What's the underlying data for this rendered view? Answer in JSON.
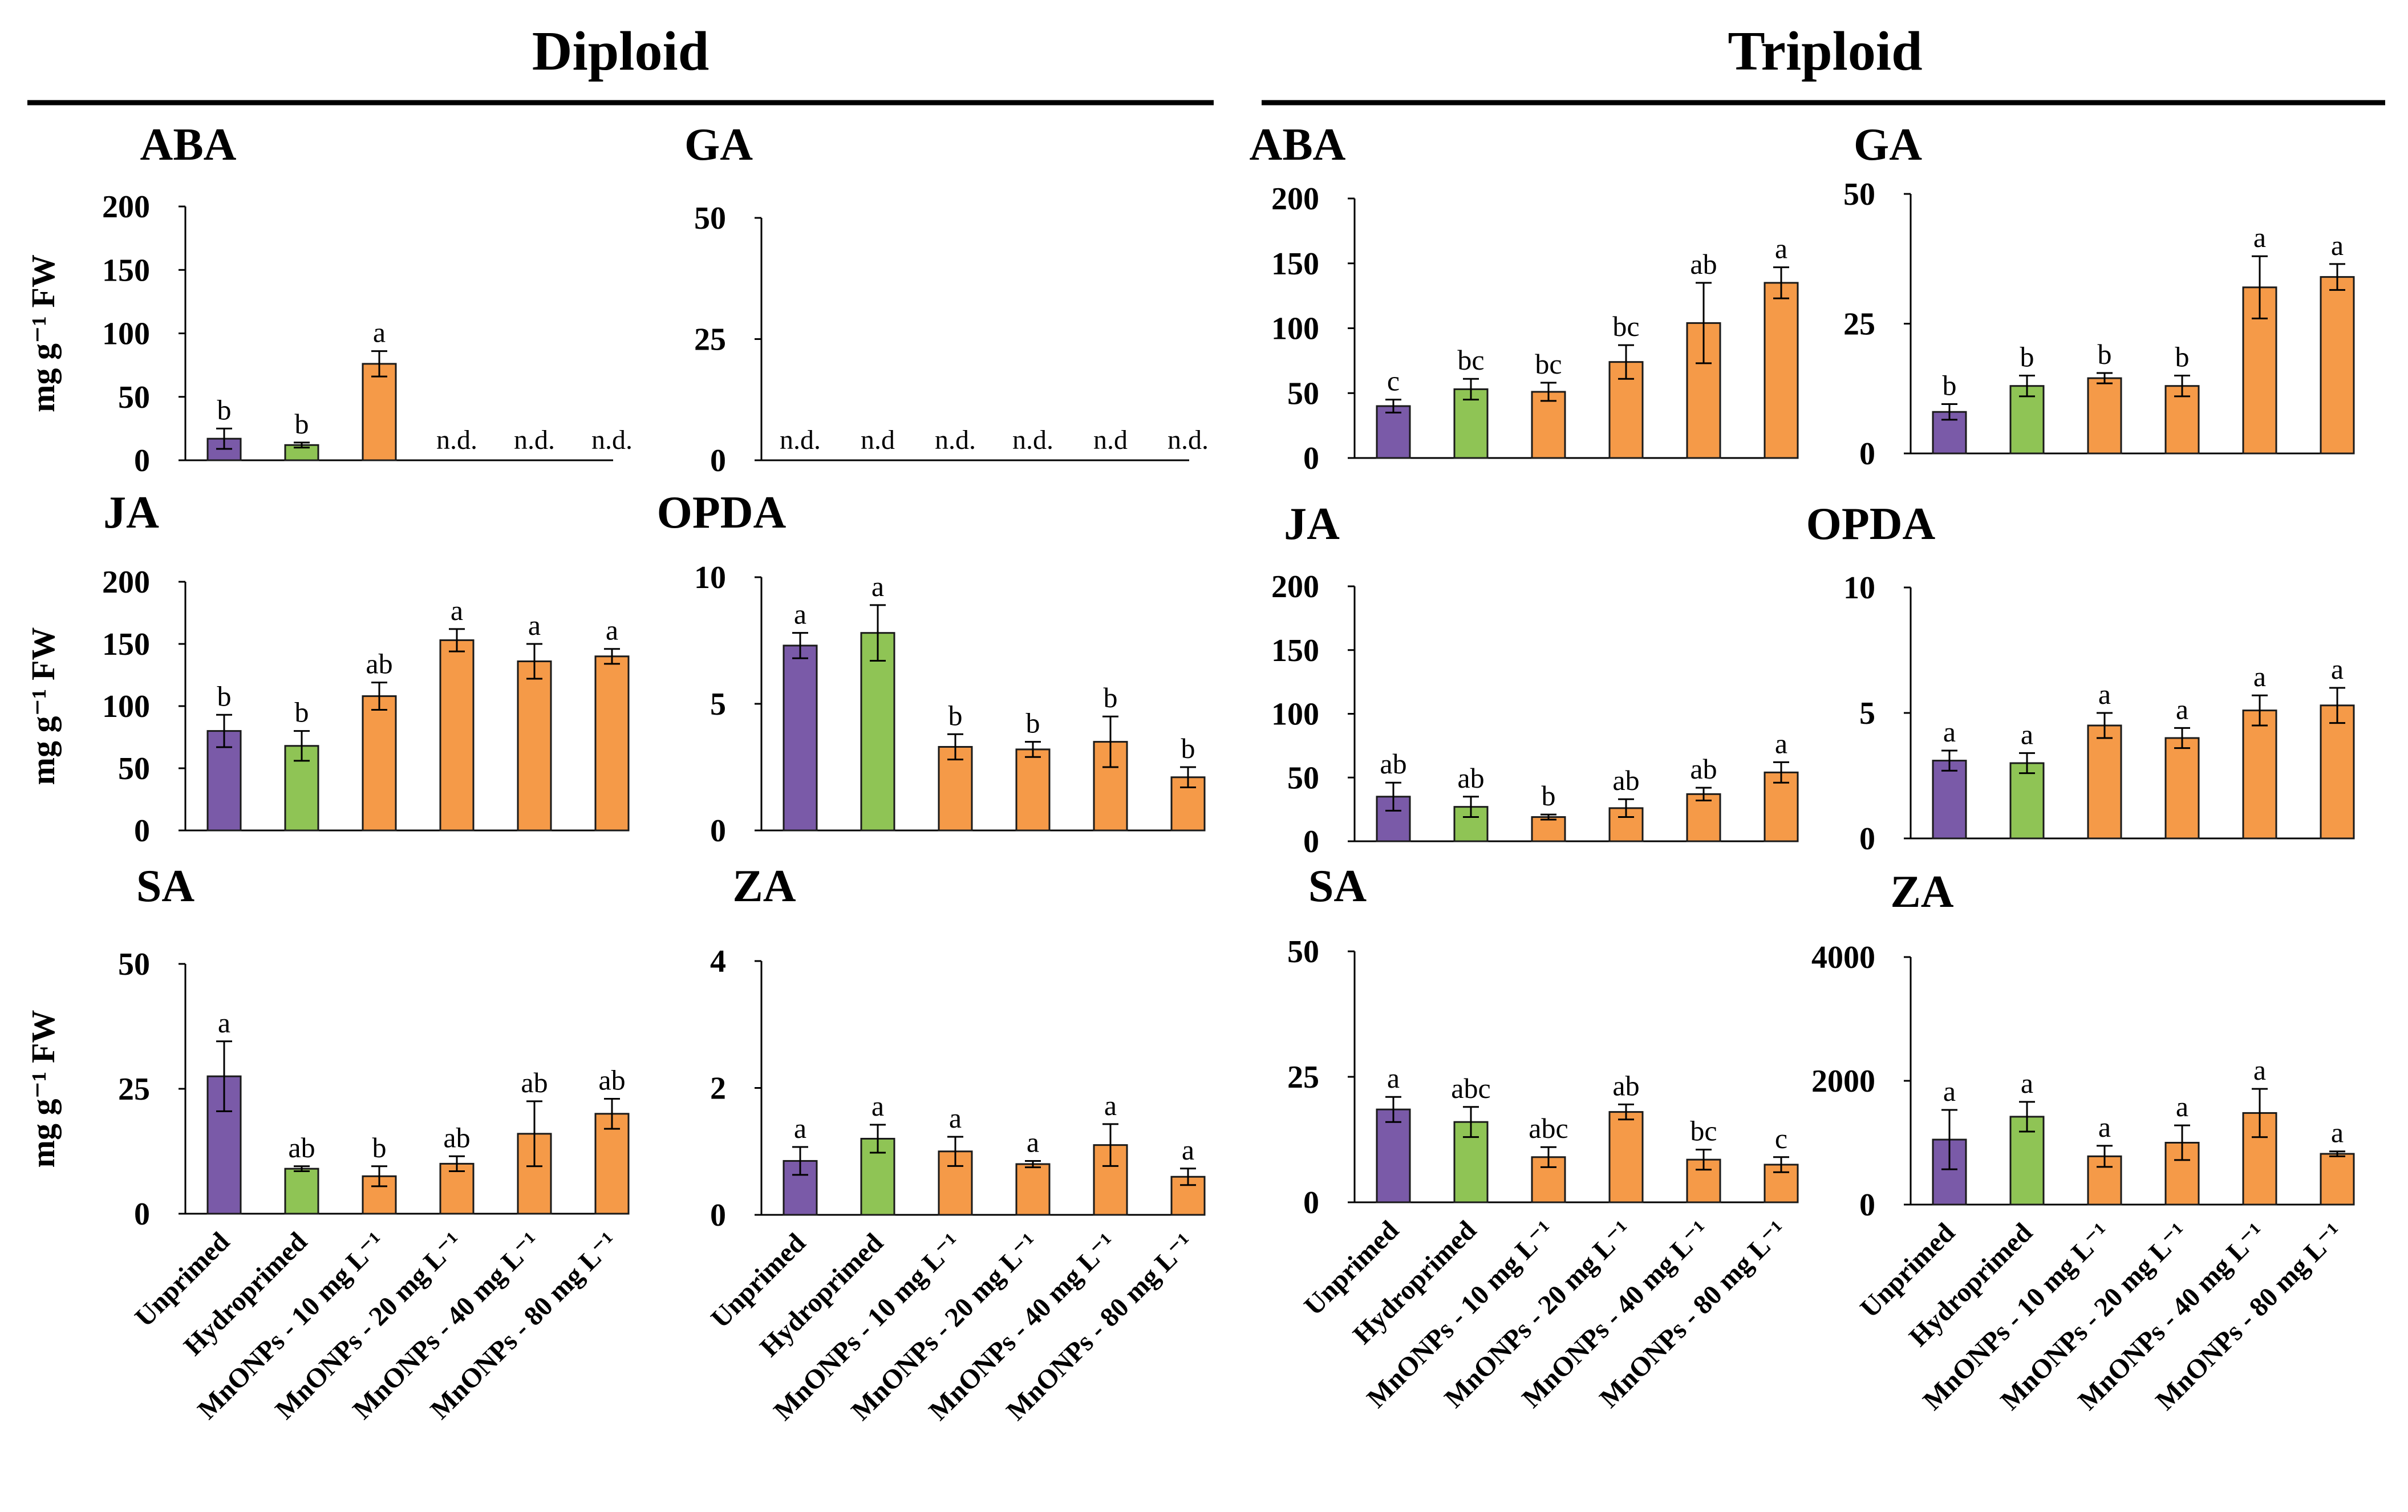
{
  "group_titles": [
    "Diploid",
    "Triploid"
  ],
  "colors": {
    "Unprimed": "#7a5aa8",
    "Hydroprimed": "#8fc455",
    "MnONPs": "#f59a48",
    "outline": "#1a1a1a"
  },
  "chart_data": [
    {
      "type": "bar",
      "group": "Diploid",
      "title": "ABA",
      "ylabel": "mg g⁻¹ FW",
      "ylim": [
        0,
        200
      ],
      "yticks": [
        0,
        50,
        100,
        150,
        200
      ],
      "categories": [
        "Unprimed",
        "Hydroprimed",
        "MnONPs - 10 mg L⁻¹",
        "MnONPs - 20 mg L⁻¹",
        "MnONPs - 40 mg L⁻¹",
        "MnONPs - 80 mg L⁻¹"
      ],
      "values": [
        17,
        12,
        76,
        null,
        null,
        null
      ],
      "errors": [
        8,
        2,
        10,
        null,
        null,
        null
      ],
      "labels": [
        "b",
        "b",
        "a",
        "n.d.",
        "n.d.",
        "n.d."
      ]
    },
    {
      "type": "bar",
      "group": "Diploid",
      "title": "GA",
      "ylabel": "",
      "ylim": [
        0,
        50
      ],
      "yticks": [
        0,
        25,
        50
      ],
      "categories": [
        "Unprimed",
        "Hydroprimed",
        "MnONPs - 10 mg L⁻¹",
        "MnONPs - 20 mg L⁻¹",
        "MnONPs - 40 mg L⁻¹",
        "MnONPs - 80 mg L⁻¹"
      ],
      "values": [
        null,
        null,
        null,
        null,
        null,
        null
      ],
      "errors": [
        null,
        null,
        null,
        null,
        null,
        null
      ],
      "labels": [
        "n.d.",
        "n.d",
        "n.d.",
        "n.d.",
        "n.d",
        "n.d."
      ]
    },
    {
      "type": "bar",
      "group": "Triploid",
      "title": "ABA",
      "ylabel": "",
      "ylim": [
        0,
        200
      ],
      "yticks": [
        0,
        50,
        100,
        150,
        200
      ],
      "categories": [
        "Unprimed",
        "Hydroprimed",
        "MnONPs - 10 mg L⁻¹",
        "MnONPs - 20 mg L⁻¹",
        "MnONPs - 40 mg L⁻¹",
        "MnONPs - 80 mg L⁻¹"
      ],
      "values": [
        40,
        53,
        51,
        74,
        104,
        135
      ],
      "errors": [
        5,
        8,
        7,
        13,
        31,
        12
      ],
      "labels": [
        "c",
        "bc",
        "bc",
        "bc",
        "ab",
        "a"
      ]
    },
    {
      "type": "bar",
      "group": "Triploid",
      "title": "GA",
      "ylabel": "",
      "ylim": [
        0,
        50
      ],
      "yticks": [
        0,
        25,
        50
      ],
      "categories": [
        "Unprimed",
        "Hydroprimed",
        "MnONPs - 10 mg L⁻¹",
        "MnONPs - 20 mg L⁻¹",
        "MnONPs - 40 mg L⁻¹",
        "MnONPs - 80 mg L⁻¹"
      ],
      "values": [
        8,
        13,
        14.5,
        13,
        32,
        34
      ],
      "errors": [
        1.5,
        2,
        1,
        2,
        6,
        2.5
      ],
      "labels": [
        "b",
        "b",
        "b",
        "b",
        "a",
        "a"
      ]
    },
    {
      "type": "bar",
      "group": "Diploid",
      "title": "JA",
      "ylabel": "mg g⁻¹ FW",
      "ylim": [
        0,
        200
      ],
      "yticks": [
        0,
        50,
        100,
        150,
        200
      ],
      "categories": [
        "Unprimed",
        "Hydroprimed",
        "MnONPs - 10 mg L⁻¹",
        "MnONPs - 20 mg L⁻¹",
        "MnONPs - 40 mg L⁻¹",
        "MnONPs - 80 mg L⁻¹"
      ],
      "values": [
        80,
        68,
        108,
        153,
        136,
        140
      ],
      "errors": [
        13,
        12,
        11,
        9,
        14,
        6
      ],
      "labels": [
        "b",
        "b",
        "ab",
        "a",
        "a",
        "a"
      ]
    },
    {
      "type": "bar",
      "group": "Diploid",
      "title": "OPDA",
      "ylabel": "",
      "ylim": [
        0,
        10
      ],
      "yticks": [
        0,
        5,
        10
      ],
      "categories": [
        "Unprimed",
        "Hydroprimed",
        "MnONPs - 10 mg L⁻¹",
        "MnONPs - 20 mg L⁻¹",
        "MnONPs - 40 mg L⁻¹",
        "MnONPs - 80 mg L⁻¹"
      ],
      "values": [
        7.3,
        7.8,
        3.3,
        3.2,
        3.5,
        2.1
      ],
      "errors": [
        0.5,
        1.1,
        0.5,
        0.3,
        1.0,
        0.4
      ],
      "labels": [
        "a",
        "a",
        "b",
        "b",
        "b",
        "b"
      ]
    },
    {
      "type": "bar",
      "group": "Triploid",
      "title": "JA",
      "ylabel": "",
      "ylim": [
        0,
        200
      ],
      "yticks": [
        0,
        50,
        100,
        150,
        200
      ],
      "categories": [
        "Unprimed",
        "Hydroprimed",
        "MnONPs - 10 mg L⁻¹",
        "MnONPs - 20 mg L⁻¹",
        "MnONPs - 40 mg L⁻¹",
        "MnONPs - 80 mg L⁻¹"
      ],
      "values": [
        35,
        27,
        19,
        26,
        37,
        54
      ],
      "errors": [
        11,
        8,
        2,
        7,
        5,
        8
      ],
      "labels": [
        "ab",
        "ab",
        "b",
        "ab",
        "ab",
        "a"
      ]
    },
    {
      "type": "bar",
      "group": "Triploid",
      "title": "OPDA",
      "ylabel": "",
      "ylim": [
        0,
        10
      ],
      "yticks": [
        0,
        5,
        10
      ],
      "categories": [
        "Unprimed",
        "Hydroprimed",
        "MnONPs - 10 mg L⁻¹",
        "MnONPs - 20 mg L⁻¹",
        "MnONPs - 40 mg L⁻¹",
        "MnONPs - 80 mg L⁻¹"
      ],
      "values": [
        3.1,
        3.0,
        4.5,
        4.0,
        5.1,
        5.3
      ],
      "errors": [
        0.4,
        0.4,
        0.5,
        0.4,
        0.6,
        0.7
      ],
      "labels": [
        "a",
        "a",
        "a",
        "a",
        "a",
        "a"
      ]
    },
    {
      "type": "bar",
      "group": "Diploid",
      "title": "SA",
      "ylabel": "mg g⁻¹ FW",
      "ylim": [
        0,
        50
      ],
      "yticks": [
        0,
        25,
        50
      ],
      "categories": [
        "Unprimed",
        "Hydroprimed",
        "MnONPs - 10 mg L⁻¹",
        "MnONPs - 20 mg L⁻¹",
        "MnONPs - 40 mg L⁻¹",
        "MnONPs - 80 mg L⁻¹"
      ],
      "values": [
        27.5,
        9,
        7.5,
        10,
        16,
        20
      ],
      "errors": [
        7,
        0.5,
        2,
        1.5,
        6.5,
        3
      ],
      "labels": [
        "a",
        "ab",
        "b",
        "ab",
        "ab",
        "ab"
      ]
    },
    {
      "type": "bar",
      "group": "Diploid",
      "title": "ZA",
      "ylabel": "",
      "ylim": [
        0,
        4
      ],
      "yticks": [
        0,
        2,
        4
      ],
      "categories": [
        "Unprimed",
        "Hydroprimed",
        "MnONPs - 10 mg L⁻¹",
        "MnONPs - 20 mg L⁻¹",
        "MnONPs - 40 mg L⁻¹",
        "MnONPs - 80 mg L⁻¹"
      ],
      "values": [
        0.85,
        1.2,
        1.0,
        0.8,
        1.1,
        0.6
      ],
      "errors": [
        0.22,
        0.22,
        0.23,
        0.05,
        0.33,
        0.13
      ],
      "labels": [
        "a",
        "a",
        "a",
        "a",
        "a",
        "a"
      ]
    },
    {
      "type": "bar",
      "group": "Triploid",
      "title": "SA",
      "ylabel": "",
      "ylim": [
        0,
        50
      ],
      "yticks": [
        0,
        25,
        50
      ],
      "categories": [
        "Unprimed",
        "Hydroprimed",
        "MnONPs - 10 mg L⁻¹",
        "MnONPs - 20 mg L⁻¹",
        "MnONPs - 40 mg L⁻¹",
        "MnONPs - 80 mg L⁻¹"
      ],
      "values": [
        18.5,
        16,
        9,
        18,
        8.5,
        7.5
      ],
      "errors": [
        2.5,
        3,
        2,
        1.5,
        2,
        1.5
      ],
      "labels": [
        "a",
        "abc",
        "abc",
        "ab",
        "bc",
        "c"
      ]
    },
    {
      "type": "bar",
      "group": "Triploid",
      "title": "ZA",
      "ylabel": "",
      "ylim": [
        0,
        4000
      ],
      "yticks": [
        0,
        2000,
        4000
      ],
      "categories": [
        "Unprimed",
        "Hydroprimed",
        "MnONPs - 10 mg L⁻¹",
        "MnONPs - 20 mg L⁻¹",
        "MnONPs - 40 mg L⁻¹",
        "MnONPs - 80 mg L⁻¹"
      ],
      "values": [
        1050,
        1420,
        780,
        1000,
        1480,
        820
      ],
      "errors": [
        480,
        240,
        170,
        280,
        390,
        40
      ],
      "labels": [
        "a",
        "a",
        "a",
        "a",
        "a",
        "a"
      ]
    }
  ]
}
